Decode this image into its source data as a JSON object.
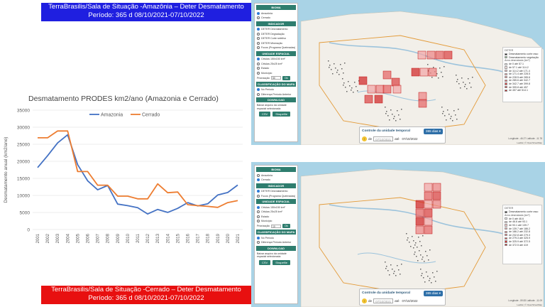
{
  "banners": {
    "top_line1": "TerraBrasilis/Sala de Situação -Amazônia – Deter Desmatamento",
    "top_line2": "Período: 365 d 08/10/2021-07/10/2022",
    "bottom_line1": "TerraBrasilis/Sala de Situação -Cerrado – Deter Desmatamento",
    "bottom_line2": "Período: 365 d 08/10/2021-07/10/2022"
  },
  "chart_title": "Desmatamento PRODES km2/ano (Amazonia e Cerrado)",
  "chart_data": {
    "type": "line",
    "title": "Desmatamento PRODES km2/ano (Amazonia e Cerrado)",
    "xlabel": "",
    "ylabel": "Desmatamento anual (km2/ano)",
    "categories": [
      "2001",
      "2002",
      "2003",
      "2004",
      "2005",
      "2006",
      "2007",
      "2008",
      "2009",
      "2010",
      "2011",
      "2012",
      "2013",
      "2014",
      "2015",
      "2016",
      "2017",
      "2018",
      "2019",
      "2020",
      "2021"
    ],
    "ylim": [
      0,
      35000
    ],
    "yticks": [
      "0",
      "5000",
      "10000",
      "15000",
      "20000",
      "25000",
      "30000",
      "35000"
    ],
    "legend_position": "top",
    "grid": true,
    "series": [
      {
        "name": "Amazonia",
        "color": "#4472c4",
        "values": [
          18165,
          21650,
          25396,
          27772,
          19014,
          14286,
          11651,
          12911,
          7464,
          7000,
          6418,
          4571,
          5891,
          5012,
          6207,
          7893,
          6947,
          7536,
          10129,
          10851,
          13038
        ]
      },
      {
        "name": "Cerrado",
        "color": "#ed7d31",
        "values": [
          26900,
          26900,
          28900,
          28900,
          17000,
          17000,
          13000,
          13000,
          9800,
          9800,
          9000,
          9000,
          13400,
          10800,
          11000,
          7300,
          7000,
          6800,
          6500,
          7900,
          8500
        ]
      }
    ]
  },
  "panels": [
    {
      "biome_header": "BIOMA",
      "biome_options": [
        "Amazônia",
        "Cerrado"
      ],
      "biome_selected": 0,
      "indicator_header": "INDICADOR",
      "indicator_options": [
        "DETER Desmatamento",
        "DETER Degradação",
        "DETER Corte seletivo",
        "DETER Mineração",
        "Focos (Programa Queimadas)"
      ],
      "unit_header": "UNIDADE ESPACIAL",
      "unit_options": [
        "Células 150x150 km²",
        "Células 25x25 km²",
        "Estado",
        "Município"
      ],
      "prox_label": "Priorização",
      "prox_value": "50",
      "ok_label": "Ok",
      "class_header": "CLASSIFICAÇÃO DO MAPA",
      "class_options": [
        "No Período",
        "Diferença Período Anterior"
      ],
      "download_header": "DOWNLOAD",
      "download_text": "Baixar arquivo da unidade espacial selecionada",
      "csv_label": "CSV",
      "shp_label": "Shapefile",
      "legend_title": "DETER",
      "legend_layers": [
        "Desmatamento corte raso",
        "Desmatamento vegetação"
      ],
      "legend_unit": "Área desmatada (km²)",
      "legend_rows": [
        "de 0 até 57.1",
        "de 57.1 até 114.2",
        "de 114.2 até 171.4",
        "de 171.4 até 228.5",
        "de 228.5 até 285.6",
        "de 285.6 até 342.7",
        "de 342.7 até 399.8",
        "de 399.8 até 457",
        "de 457 até 514.1"
      ],
      "legend_colors": [
        "#ffffff",
        "#fbe3e3",
        "#f7c9c9",
        "#f2aaaa",
        "#ec8a8a",
        "#e56b6b",
        "#dc4b4b",
        "#d12e2e",
        "#c01515"
      ],
      "time_title": "Controle da unidade temporal",
      "days_label": "365 dias ▾",
      "from_label": "de",
      "from_date": "07/10/2021",
      "to_label": "até",
      "to_date": "07/10/2022",
      "coord_text": "Longitude: -46.27 Latitude: -11.78",
      "attrib_text": "Leaflet | © OpenStreetMap"
    },
    {
      "biome_header": "BIOMA",
      "biome_options": [
        "Amazônia",
        "Cerrado"
      ],
      "biome_selected": 1,
      "indicator_header": "INDICADOR",
      "indicator_options": [
        "DETER Desmatamento",
        "Focos (Programa Queimadas)"
      ],
      "unit_header": "UNIDADE ESPACIAL",
      "unit_options": [
        "Células 150x150 km²",
        "Células 25x25 km²",
        "Estado",
        "Município"
      ],
      "prox_label": "Priorização",
      "prox_value": "10",
      "ok_label": "Ok",
      "class_header": "CLASSIFICAÇÃO DO MAPA",
      "class_options": [
        "No Período",
        "Diferença Período Anterior"
      ],
      "download_header": "DOWNLOAD",
      "download_text": "Baixar arquivo da unidade espacial selecionada",
      "csv_label": "CSV",
      "shp_label": "Shapefile",
      "legend_title": "DETER",
      "legend_layers": [
        "Desmatamento corte raso"
      ],
      "legend_unit": "Área desmatada (km²)",
      "legend_rows": [
        "de 0 até 46.6",
        "de 46.6 até 93.1",
        "de 93.1 até 139.7",
        "de 139.7 até 186.2",
        "de 186.2 até 232.8",
        "de 232.8 até 279.3",
        "de 279.3 até 325.9",
        "de 325.9 até 372.5",
        "de 372.5 até 419"
      ],
      "legend_colors": [
        "#ffffff",
        "#fbe3e3",
        "#f7c9c9",
        "#f2aaaa",
        "#ec8a8a",
        "#e56b6b",
        "#dc4b4b",
        "#d12e2e",
        "#c01515"
      ],
      "time_title": "Controle da unidade temporal",
      "days_label": "365 dias ▾",
      "from_label": "de",
      "from_date": "07/10/2021",
      "to_label": "até",
      "to_date": "07/10/2022",
      "coord_text": "Longitude: -59.83 Latitude: -11.09",
      "attrib_text": "Leaflet | © OpenStreetMap"
    }
  ]
}
